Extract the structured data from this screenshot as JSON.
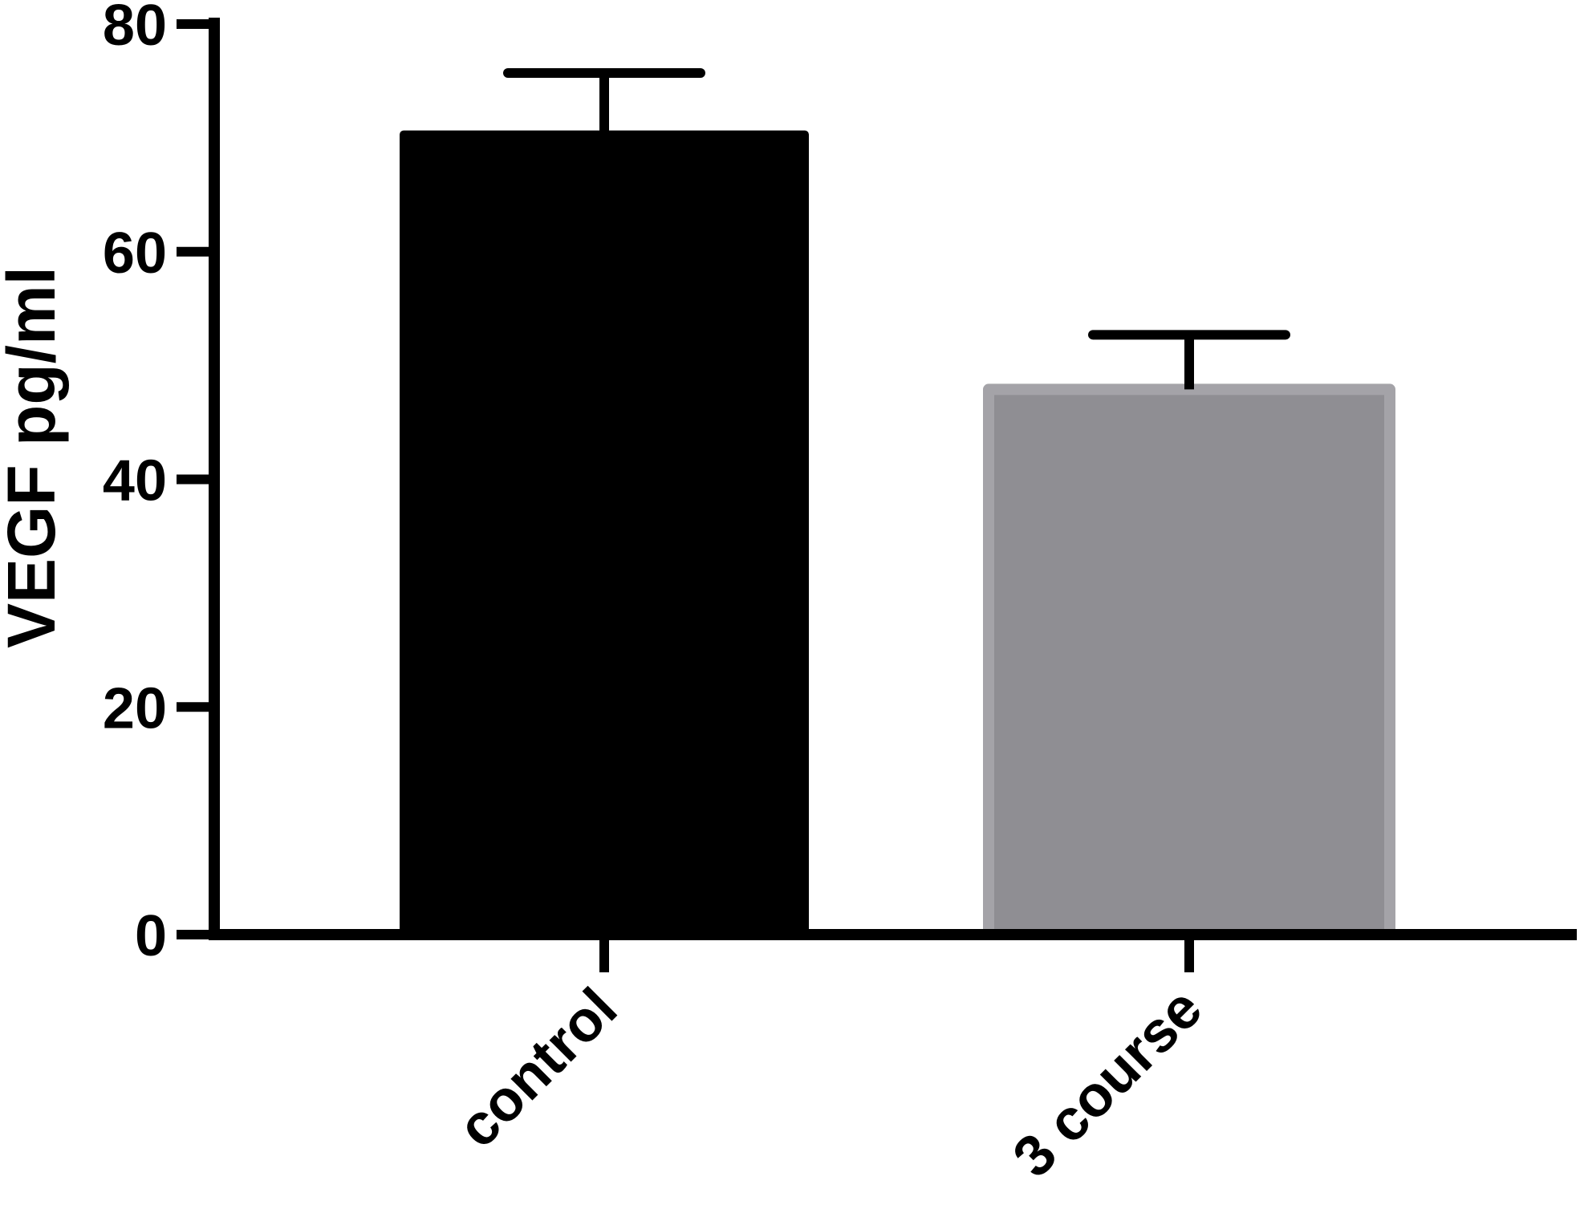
{
  "chart_data": {
    "type": "bar",
    "categories": [
      "control",
      "3 course"
    ],
    "values": [
      70.3,
      47.9
    ],
    "errors": [
      5.4,
      4.8
    ],
    "ylabel": "VEGF pg/ml",
    "ylim": [
      0,
      80
    ],
    "yticks": [
      "0",
      "20",
      "40",
      "60",
      "80"
    ],
    "colors": [
      "#000000",
      "#8f8e93"
    ],
    "grid": false,
    "legend": "none"
  }
}
